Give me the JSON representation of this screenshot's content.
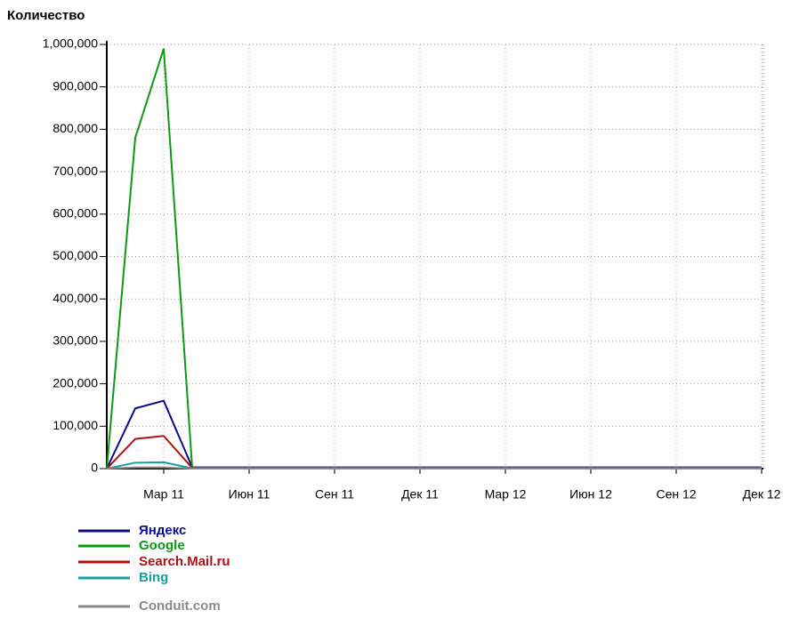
{
  "chart_data": {
    "type": "line",
    "title": "Количество",
    "categories": [
      null,
      null,
      "Мар 11",
      null,
      null,
      "Июн 11",
      null,
      null,
      "Сен 11",
      null,
      null,
      "Дек 11",
      null,
      null,
      "Мар 12",
      null,
      null,
      "Июн 12",
      null,
      null,
      "Сен 12",
      null,
      null,
      "Дек 12"
    ],
    "series": [
      {
        "name": "Яндекс",
        "color": "#0a0a8c",
        "values": [
          0,
          142000,
          160000,
          3000,
          3000,
          3000,
          3000,
          3000,
          3000,
          3000,
          3000,
          3000,
          3000,
          3000,
          3000,
          3000,
          3000,
          3000,
          3000,
          3000,
          3000,
          3000,
          3000,
          3000
        ]
      },
      {
        "name": "Google",
        "color": "#0a9a14",
        "values": [
          0,
          780000,
          990000,
          2000,
          2000,
          2000,
          2000,
          2000,
          2000,
          2000,
          2000,
          2000,
          2000,
          2000,
          2000,
          2000,
          2000,
          2000,
          2000,
          2000,
          2000,
          2000,
          2000,
          2000
        ]
      },
      {
        "name": "Search.Mail.ru",
        "color": "#b01010",
        "values": [
          0,
          70000,
          77000,
          1500,
          1500,
          1500,
          1500,
          1500,
          1500,
          1500,
          1500,
          1500,
          1500,
          1500,
          1500,
          1500,
          1500,
          1500,
          1500,
          1500,
          1500,
          1500,
          1500,
          1500
        ]
      },
      {
        "name": "Bing",
        "color": "#16a0a0",
        "values": [
          0,
          14000,
          15000,
          500,
          500,
          500,
          500,
          500,
          500,
          500,
          500,
          500,
          500,
          500,
          500,
          500,
          500,
          500,
          500,
          500,
          500,
          500,
          500,
          500
        ]
      },
      {
        "name": "Conduit.com",
        "color": "#8a8a8a",
        "values": [
          0,
          3000,
          3000,
          0,
          0,
          0,
          0,
          0,
          0,
          0,
          0,
          0,
          0,
          0,
          0,
          0,
          0,
          0,
          0,
          0,
          0,
          0,
          0,
          0
        ]
      }
    ],
    "ylim": [
      0,
      1000000
    ],
    "yticks": [
      0,
      {
        "value": 100000,
        "label": "100,000"
      },
      {
        "value": 200000,
        "label": "200,000"
      },
      {
        "value": 300000,
        "label": "300,000"
      },
      {
        "value": 400000,
        "label": "400,000"
      },
      {
        "value": 500000,
        "label": "500,000"
      },
      {
        "value": 600000,
        "label": "600,000"
      },
      {
        "value": 700000,
        "label": "700,000"
      },
      {
        "value": 800000,
        "label": "800,000"
      },
      {
        "value": 900000,
        "label": "900,000"
      },
      {
        "value": 1000000,
        "label": "1,000,000"
      }
    ],
    "grid": true
  }
}
